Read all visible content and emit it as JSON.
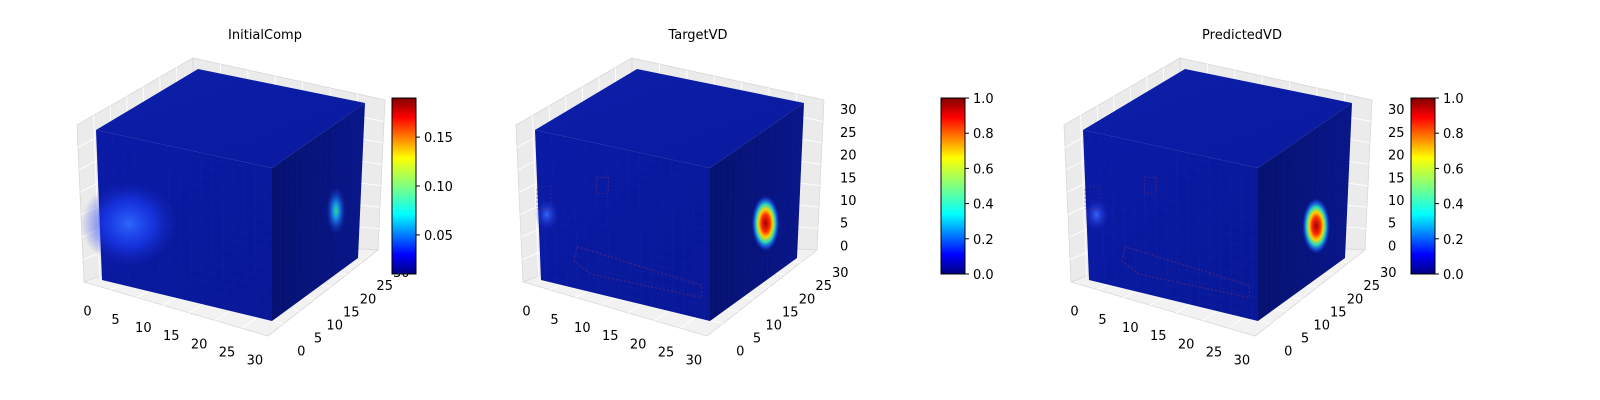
{
  "chart_data": [
    {
      "type": "voxel3d",
      "title": "InitialComp",
      "axes": {
        "x_ticks": [
          "0",
          "5",
          "10",
          "15",
          "20",
          "25",
          "30"
        ],
        "y_ticks": [
          "0",
          "5",
          "10",
          "15",
          "20",
          "25",
          "30"
        ],
        "z_ticks": [],
        "xlim": [
          0,
          32
        ],
        "ylim": [
          0,
          32
        ],
        "zlim": [
          0,
          32
        ]
      },
      "colorbar": {
        "colormap": "jet",
        "range": [
          0.01,
          0.19
        ],
        "ticks": [
          0.05,
          0.1,
          0.15
        ],
        "tick_labels": [
          "0.05",
          "0.10",
          "0.15"
        ]
      },
      "highlights": [
        {
          "face": "front",
          "u": 0.17,
          "v": 0.58,
          "value": 0.07
        },
        {
          "face": "side",
          "u": 0.72,
          "v": 0.58,
          "value": 0.09
        }
      ]
    },
    {
      "type": "voxel3d",
      "title": "TargetVD",
      "axes": {
        "x_ticks": [
          "0",
          "5",
          "10",
          "15",
          "20",
          "25",
          "30"
        ],
        "y_ticks": [
          "0",
          "5",
          "10",
          "15",
          "20",
          "25",
          "30"
        ],
        "z_ticks": [
          "0",
          "5",
          "10",
          "15",
          "20",
          "25",
          "30"
        ],
        "xlim": [
          0,
          32
        ],
        "ylim": [
          0,
          32
        ],
        "zlim": [
          0,
          32
        ]
      },
      "colorbar": {
        "colormap": "jet",
        "range": [
          0.0,
          1.0
        ],
        "ticks": [
          0.0,
          0.2,
          0.4,
          0.6,
          0.8,
          1.0
        ],
        "tick_labels": [
          "0.0",
          "0.2",
          "0.4",
          "0.6",
          "0.8",
          "1.0"
        ]
      },
      "highlights": [
        {
          "face": "side",
          "u": 0.62,
          "v": 0.62,
          "value": 0.9
        },
        {
          "face": "front",
          "u": 0.05,
          "v": 0.55,
          "value": 0.2
        }
      ]
    },
    {
      "type": "voxel3d",
      "title": "PredictedVD",
      "axes": {
        "x_ticks": [
          "0",
          "5",
          "10",
          "15",
          "20",
          "25",
          "30"
        ],
        "y_ticks": [
          "0",
          "5",
          "10",
          "15",
          "20",
          "25",
          "30"
        ],
        "z_ticks": [
          "0",
          "5",
          "10",
          "15",
          "20",
          "25",
          "30"
        ],
        "xlim": [
          0,
          32
        ],
        "ylim": [
          0,
          32
        ],
        "zlim": [
          0,
          32
        ]
      },
      "colorbar": {
        "colormap": "jet",
        "range": [
          0.0,
          1.0
        ],
        "ticks": [
          0.0,
          0.2,
          0.4,
          0.6,
          0.8,
          1.0
        ],
        "tick_labels": [
          "0.0",
          "0.2",
          "0.4",
          "0.6",
          "0.8",
          "1.0"
        ]
      },
      "highlights": [
        {
          "face": "side",
          "u": 0.65,
          "v": 0.65,
          "value": 0.85
        },
        {
          "face": "front",
          "u": 0.06,
          "v": 0.55,
          "value": 0.2
        }
      ]
    }
  ]
}
